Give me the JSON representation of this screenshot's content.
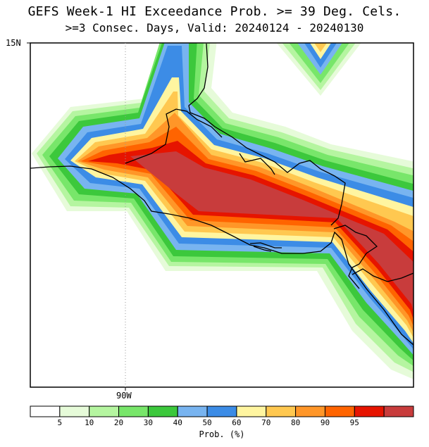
{
  "title": {
    "line1": "GEFS Week-1 HI Exceedance Prob. >= 39 Deg. Cels.",
    "line2": ">=3 Consec. Days, Valid: 20240124 - 20240130"
  },
  "map": {
    "lat_label": "15N",
    "lon_label": "90W",
    "region": "Central America Pacific coast (Guatemala / El Salvador / Honduras / Nicaragua)"
  },
  "colorbar": {
    "title": "Prob. (%)",
    "ticks": [
      "5",
      "10",
      "20",
      "30",
      "40",
      "50",
      "60",
      "70",
      "80",
      "90",
      "95"
    ],
    "colors": [
      "#ffffff",
      "#e6fbd9",
      "#b5f5a0",
      "#78e66a",
      "#3cc83c",
      "#78b4f0",
      "#3c8ce6",
      "#fff5a0",
      "#ffc850",
      "#ff9628",
      "#ff6400",
      "#e61400",
      "#c83c3c"
    ]
  }
}
